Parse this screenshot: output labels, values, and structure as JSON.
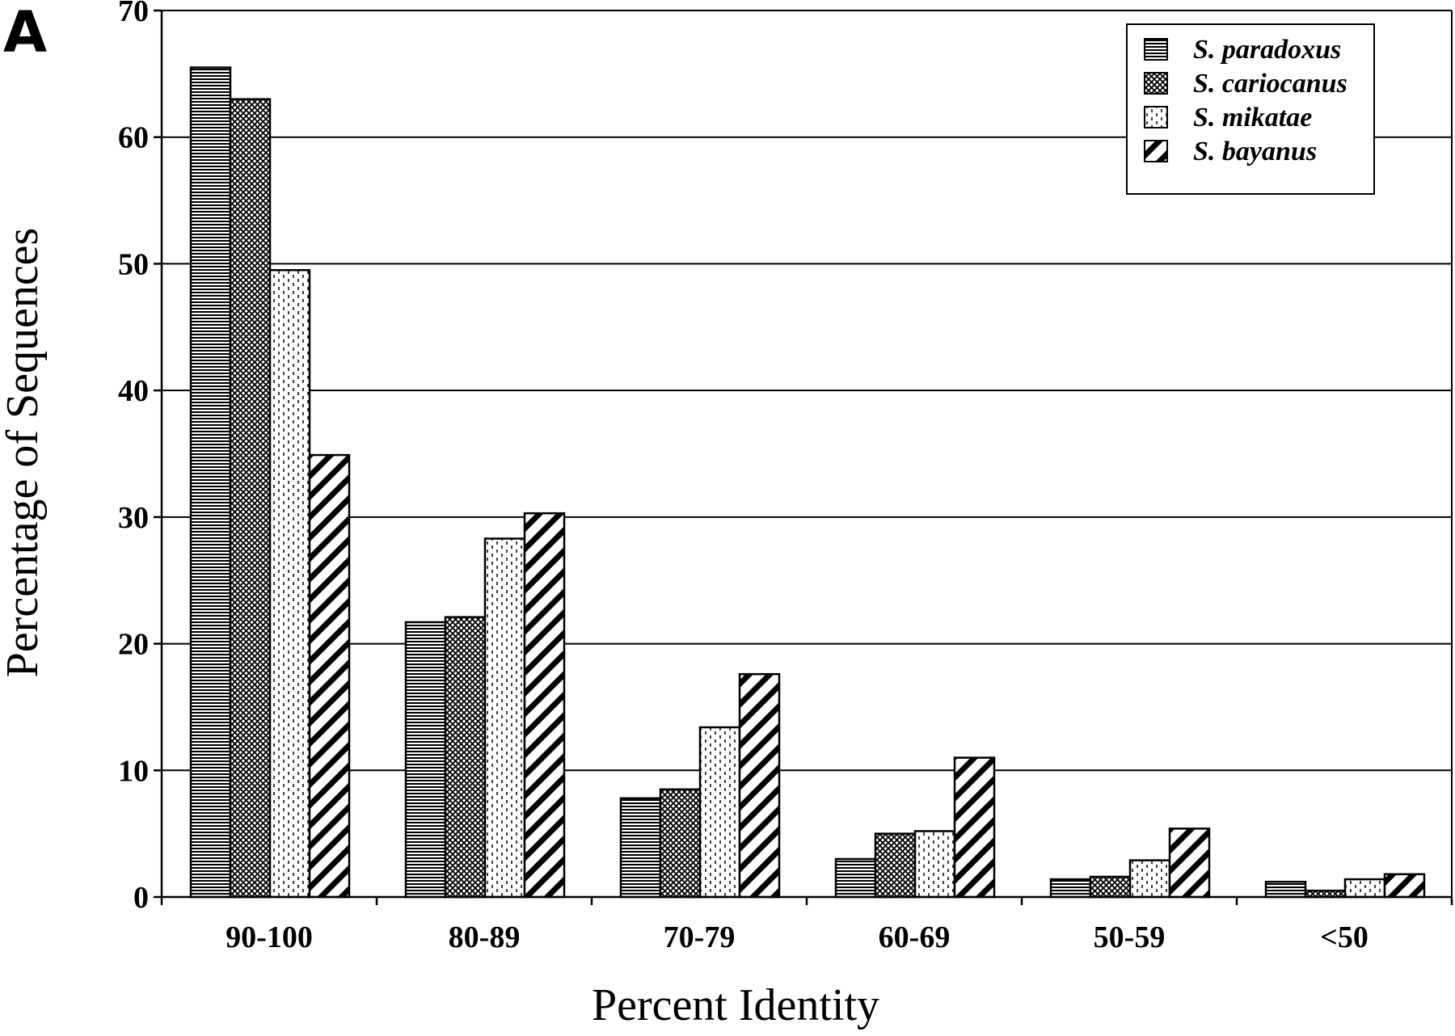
{
  "panel_label": "A",
  "chart_data": {
    "type": "bar",
    "title": "",
    "xlabel": "Percent Identity",
    "ylabel": "Percentage of Sequences",
    "categories": [
      "90-100",
      "80-89",
      "70-79",
      "60-69",
      "50-59",
      "<50"
    ],
    "ylim": [
      0,
      70
    ],
    "yticks": [
      0,
      10,
      20,
      30,
      40,
      50,
      60,
      70
    ],
    "grid": "horizontal",
    "legend_position": "top-right",
    "series": [
      {
        "name": "S. paradoxus",
        "pattern": "horizontal-lines",
        "values": [
          65.5,
          21.7,
          7.8,
          3.0,
          1.4,
          1.2
        ]
      },
      {
        "name": "S. cariocanus",
        "pattern": "crosshatch",
        "values": [
          63.0,
          22.1,
          8.5,
          5.0,
          1.6,
          0.5
        ]
      },
      {
        "name": "S. mikatae",
        "pattern": "dashed-vertical",
        "values": [
          49.5,
          28.3,
          13.4,
          5.2,
          2.9,
          1.4
        ]
      },
      {
        "name": "S. bayanus",
        "pattern": "diagonal-stripes",
        "values": [
          34.9,
          30.3,
          17.6,
          11.0,
          5.4,
          1.8
        ]
      }
    ]
  }
}
